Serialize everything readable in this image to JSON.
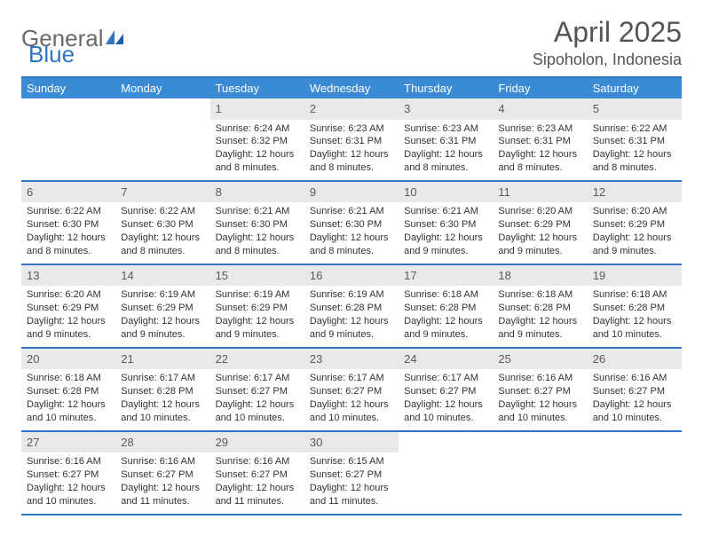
{
  "brand": {
    "part1": "General",
    "part2": "Blue"
  },
  "title": "April 2025",
  "location": "Sipoholon, Indonesia",
  "colors": {
    "header_bg": "#3b8bd4",
    "border": "#2f76c2",
    "daybar": "#e8e9eb",
    "text": "#333333",
    "page_bg": "#ffffff"
  },
  "font": {
    "family": "Arial",
    "body_size": 11,
    "title_size": 32,
    "location_size": 18,
    "weekday_size": 13,
    "daynum_size": 13
  },
  "weekdays": [
    "Sunday",
    "Monday",
    "Tuesday",
    "Wednesday",
    "Thursday",
    "Friday",
    "Saturday"
  ],
  "weeks": [
    [
      null,
      null,
      {
        "n": "1",
        "sr": "Sunrise: 6:24 AM",
        "ss": "Sunset: 6:32 PM",
        "d1": "Daylight: 12 hours",
        "d2": "and 8 minutes."
      },
      {
        "n": "2",
        "sr": "Sunrise: 6:23 AM",
        "ss": "Sunset: 6:31 PM",
        "d1": "Daylight: 12 hours",
        "d2": "and 8 minutes."
      },
      {
        "n": "3",
        "sr": "Sunrise: 6:23 AM",
        "ss": "Sunset: 6:31 PM",
        "d1": "Daylight: 12 hours",
        "d2": "and 8 minutes."
      },
      {
        "n": "4",
        "sr": "Sunrise: 6:23 AM",
        "ss": "Sunset: 6:31 PM",
        "d1": "Daylight: 12 hours",
        "d2": "and 8 minutes."
      },
      {
        "n": "5",
        "sr": "Sunrise: 6:22 AM",
        "ss": "Sunset: 6:31 PM",
        "d1": "Daylight: 12 hours",
        "d2": "and 8 minutes."
      }
    ],
    [
      {
        "n": "6",
        "sr": "Sunrise: 6:22 AM",
        "ss": "Sunset: 6:30 PM",
        "d1": "Daylight: 12 hours",
        "d2": "and 8 minutes."
      },
      {
        "n": "7",
        "sr": "Sunrise: 6:22 AM",
        "ss": "Sunset: 6:30 PM",
        "d1": "Daylight: 12 hours",
        "d2": "and 8 minutes."
      },
      {
        "n": "8",
        "sr": "Sunrise: 6:21 AM",
        "ss": "Sunset: 6:30 PM",
        "d1": "Daylight: 12 hours",
        "d2": "and 8 minutes."
      },
      {
        "n": "9",
        "sr": "Sunrise: 6:21 AM",
        "ss": "Sunset: 6:30 PM",
        "d1": "Daylight: 12 hours",
        "d2": "and 8 minutes."
      },
      {
        "n": "10",
        "sr": "Sunrise: 6:21 AM",
        "ss": "Sunset: 6:30 PM",
        "d1": "Daylight: 12 hours",
        "d2": "and 9 minutes."
      },
      {
        "n": "11",
        "sr": "Sunrise: 6:20 AM",
        "ss": "Sunset: 6:29 PM",
        "d1": "Daylight: 12 hours",
        "d2": "and 9 minutes."
      },
      {
        "n": "12",
        "sr": "Sunrise: 6:20 AM",
        "ss": "Sunset: 6:29 PM",
        "d1": "Daylight: 12 hours",
        "d2": "and 9 minutes."
      }
    ],
    [
      {
        "n": "13",
        "sr": "Sunrise: 6:20 AM",
        "ss": "Sunset: 6:29 PM",
        "d1": "Daylight: 12 hours",
        "d2": "and 9 minutes."
      },
      {
        "n": "14",
        "sr": "Sunrise: 6:19 AM",
        "ss": "Sunset: 6:29 PM",
        "d1": "Daylight: 12 hours",
        "d2": "and 9 minutes."
      },
      {
        "n": "15",
        "sr": "Sunrise: 6:19 AM",
        "ss": "Sunset: 6:29 PM",
        "d1": "Daylight: 12 hours",
        "d2": "and 9 minutes."
      },
      {
        "n": "16",
        "sr": "Sunrise: 6:19 AM",
        "ss": "Sunset: 6:28 PM",
        "d1": "Daylight: 12 hours",
        "d2": "and 9 minutes."
      },
      {
        "n": "17",
        "sr": "Sunrise: 6:18 AM",
        "ss": "Sunset: 6:28 PM",
        "d1": "Daylight: 12 hours",
        "d2": "and 9 minutes."
      },
      {
        "n": "18",
        "sr": "Sunrise: 6:18 AM",
        "ss": "Sunset: 6:28 PM",
        "d1": "Daylight: 12 hours",
        "d2": "and 9 minutes."
      },
      {
        "n": "19",
        "sr": "Sunrise: 6:18 AM",
        "ss": "Sunset: 6:28 PM",
        "d1": "Daylight: 12 hours",
        "d2": "and 10 minutes."
      }
    ],
    [
      {
        "n": "20",
        "sr": "Sunrise: 6:18 AM",
        "ss": "Sunset: 6:28 PM",
        "d1": "Daylight: 12 hours",
        "d2": "and 10 minutes."
      },
      {
        "n": "21",
        "sr": "Sunrise: 6:17 AM",
        "ss": "Sunset: 6:28 PM",
        "d1": "Daylight: 12 hours",
        "d2": "and 10 minutes."
      },
      {
        "n": "22",
        "sr": "Sunrise: 6:17 AM",
        "ss": "Sunset: 6:27 PM",
        "d1": "Daylight: 12 hours",
        "d2": "and 10 minutes."
      },
      {
        "n": "23",
        "sr": "Sunrise: 6:17 AM",
        "ss": "Sunset: 6:27 PM",
        "d1": "Daylight: 12 hours",
        "d2": "and 10 minutes."
      },
      {
        "n": "24",
        "sr": "Sunrise: 6:17 AM",
        "ss": "Sunset: 6:27 PM",
        "d1": "Daylight: 12 hours",
        "d2": "and 10 minutes."
      },
      {
        "n": "25",
        "sr": "Sunrise: 6:16 AM",
        "ss": "Sunset: 6:27 PM",
        "d1": "Daylight: 12 hours",
        "d2": "and 10 minutes."
      },
      {
        "n": "26",
        "sr": "Sunrise: 6:16 AM",
        "ss": "Sunset: 6:27 PM",
        "d1": "Daylight: 12 hours",
        "d2": "and 10 minutes."
      }
    ],
    [
      {
        "n": "27",
        "sr": "Sunrise: 6:16 AM",
        "ss": "Sunset: 6:27 PM",
        "d1": "Daylight: 12 hours",
        "d2": "and 10 minutes."
      },
      {
        "n": "28",
        "sr": "Sunrise: 6:16 AM",
        "ss": "Sunset: 6:27 PM",
        "d1": "Daylight: 12 hours",
        "d2": "and 11 minutes."
      },
      {
        "n": "29",
        "sr": "Sunrise: 6:16 AM",
        "ss": "Sunset: 6:27 PM",
        "d1": "Daylight: 12 hours",
        "d2": "and 11 minutes."
      },
      {
        "n": "30",
        "sr": "Sunrise: 6:15 AM",
        "ss": "Sunset: 6:27 PM",
        "d1": "Daylight: 12 hours",
        "d2": "and 11 minutes."
      },
      null,
      null,
      null
    ]
  ]
}
